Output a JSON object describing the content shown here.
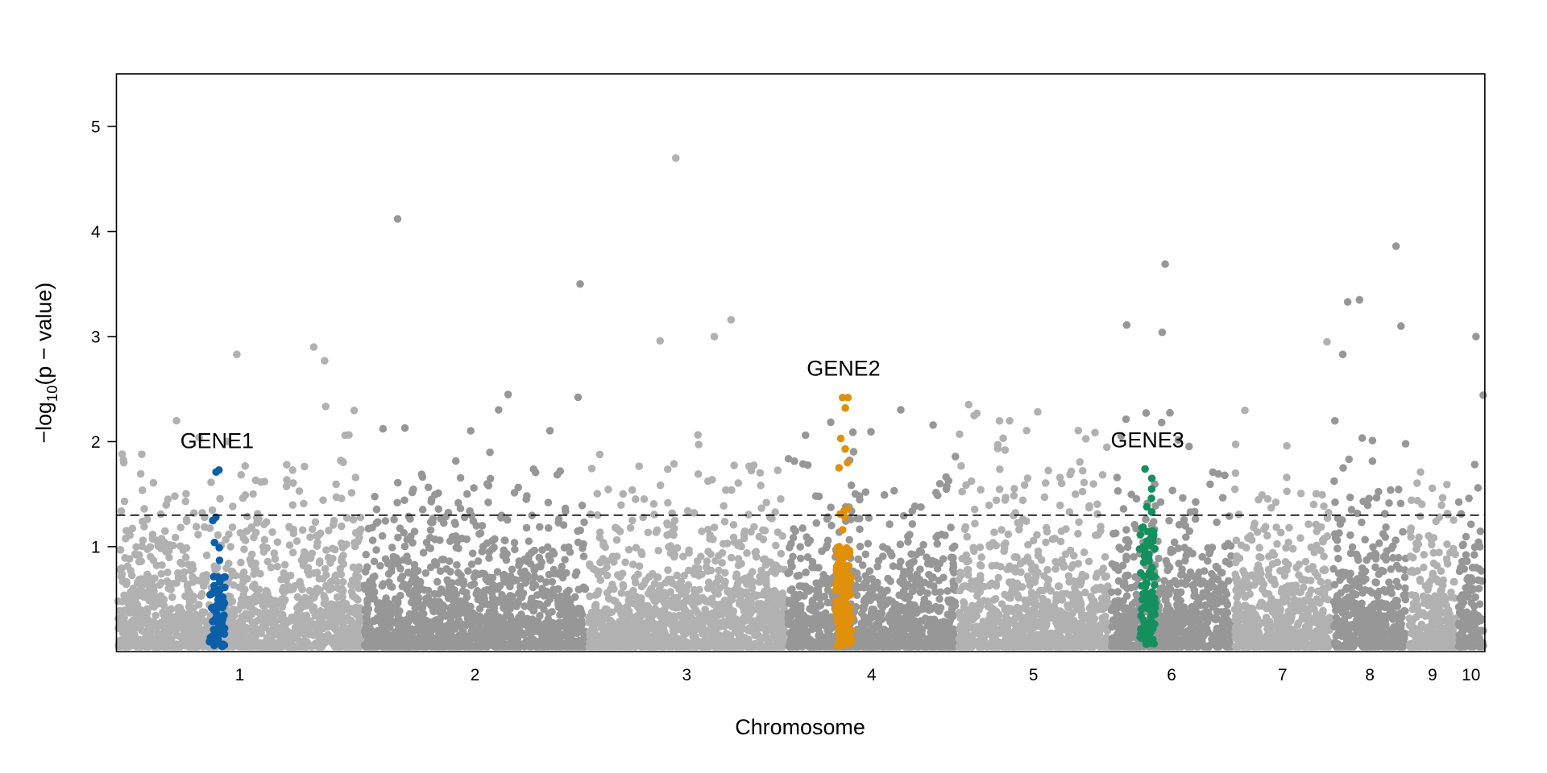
{
  "chart_data": {
    "type": "scatter",
    "subtype": "manhattan",
    "title": "",
    "xlabel": "Chromosome",
    "ylabel_parts": {
      "prefix": "−log",
      "sub": "10",
      "suffix": "(p − value)"
    },
    "ylim": [
      0,
      5.5
    ],
    "yticks": [
      1,
      2,
      3,
      4,
      5
    ],
    "threshold": 1.3,
    "chromosomes": [
      {
        "label": "1",
        "start": 0,
        "end": 250
      },
      {
        "label": "2",
        "start": 250,
        "end": 477
      },
      {
        "label": "3",
        "start": 477,
        "end": 679
      },
      {
        "label": "4",
        "start": 679,
        "end": 852
      },
      {
        "label": "5",
        "start": 852,
        "end": 1007
      },
      {
        "label": "6",
        "start": 1007,
        "end": 1132
      },
      {
        "label": "7",
        "start": 1132,
        "end": 1232
      },
      {
        "label": "8",
        "start": 1232,
        "end": 1309
      },
      {
        "label": "9",
        "start": 1309,
        "end": 1359
      },
      {
        "label": "10",
        "start": 1359,
        "end": 1387
      }
    ],
    "colors": {
      "odd": "#b1b1b1",
      "even": "#979797"
    },
    "background_points": {
      "per_unit": 5.5,
      "seed": 20240611,
      "max_value": 2.5
    },
    "top_points": [
      {
        "pos": 567,
        "value": 4.7
      },
      {
        "pos": 285,
        "value": 4.12
      },
      {
        "pos": 470,
        "value": 3.5
      },
      {
        "pos": 1297,
        "value": 3.86
      },
      {
        "pos": 1063,
        "value": 3.69
      },
      {
        "pos": 1260,
        "value": 3.35
      },
      {
        "pos": 1248,
        "value": 3.33
      },
      {
        "pos": 623,
        "value": 3.16
      },
      {
        "pos": 606,
        "value": 3.0
      },
      {
        "pos": 551,
        "value": 2.96
      },
      {
        "pos": 1024,
        "value": 3.11
      },
      {
        "pos": 1060,
        "value": 3.04
      },
      {
        "pos": 1302,
        "value": 3.1
      },
      {
        "pos": 200,
        "value": 2.9
      },
      {
        "pos": 122,
        "value": 2.83
      },
      {
        "pos": 211,
        "value": 2.77
      },
      {
        "pos": 1378,
        "value": 3.0
      },
      {
        "pos": 1243,
        "value": 2.83
      },
      {
        "pos": 1227,
        "value": 2.95
      }
    ],
    "genes": [
      {
        "label": "GENE1",
        "pos": 102,
        "color": "#0a5fa8",
        "n": 60,
        "cap": 0.72,
        "top_values": [
          1.73,
          1.71,
          1.28,
          1.25,
          1.04,
          0.99,
          0.87
        ]
      },
      {
        "label": "GENE2",
        "pos": 737,
        "color": "#e0900a",
        "n": 140,
        "cap": 1.0,
        "top_values": [
          2.42,
          2.42,
          2.32,
          2.03,
          1.93,
          1.8,
          1.75,
          1.36,
          1.34,
          1.31,
          1.28,
          1.16
        ]
      },
      {
        "label": "GENE3",
        "pos": 1045,
        "color": "#14905e",
        "n": 90,
        "cap": 1.2,
        "top_values": [
          1.74,
          1.65,
          1.55,
          1.46,
          1.38,
          1.33,
          1.33
        ]
      }
    ]
  }
}
